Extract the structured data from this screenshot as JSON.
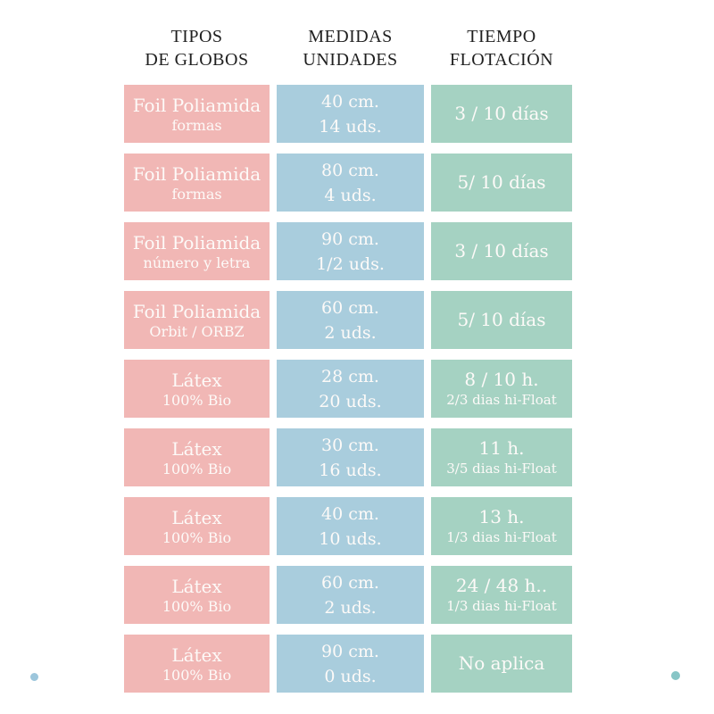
{
  "chart_data": {
    "type": "table",
    "columns": [
      {
        "line1": "TIPOS",
        "line2": "DE GLOBOS"
      },
      {
        "line1": "MEDIDAS",
        "line2": "UNIDADES"
      },
      {
        "line1": "TIEMPO",
        "line2": "FLOTACIÓN"
      }
    ],
    "rows": [
      {
        "tipo": "Foil Poliamida",
        "tipo_sub": "formas",
        "medida": "40 cm.",
        "unidades": "14 uds.",
        "flotacion": "3 / 10 días",
        "flotacion_sub": ""
      },
      {
        "tipo": "Foil Poliamida",
        "tipo_sub": "formas",
        "medida": "80 cm.",
        "unidades": "4 uds.",
        "flotacion": "5/ 10 días",
        "flotacion_sub": ""
      },
      {
        "tipo": "Foil Poliamida",
        "tipo_sub": "número y letra",
        "medida": "90 cm.",
        "unidades": "1/2 uds.",
        "flotacion": "3 / 10 días",
        "flotacion_sub": ""
      },
      {
        "tipo": "Foil Poliamida",
        "tipo_sub": "Orbit / ORBZ",
        "medida": "60 cm.",
        "unidades": "2 uds.",
        "flotacion": "5/ 10 días",
        "flotacion_sub": ""
      },
      {
        "tipo": "Látex",
        "tipo_sub": "100% Bio",
        "medida": "28 cm.",
        "unidades": "20 uds.",
        "flotacion": "8 / 10 h.",
        "flotacion_sub": "2/3 dias hi-Float"
      },
      {
        "tipo": "Látex",
        "tipo_sub": "100% Bio",
        "medida": "30 cm.",
        "unidades": "16 uds.",
        "flotacion": "11 h.",
        "flotacion_sub": "3/5 dias hi-Float"
      },
      {
        "tipo": "Látex",
        "tipo_sub": "100% Bio",
        "medida": "40 cm.",
        "unidades": "10 uds.",
        "flotacion": "13 h.",
        "flotacion_sub": "1/3 dias hi-Float"
      },
      {
        "tipo": "Látex",
        "tipo_sub": "100% Bio",
        "medida": "60 cm.",
        "unidades": "2 uds.",
        "flotacion": "24 / 48 h..",
        "flotacion_sub": "1/3 dias hi-Float"
      },
      {
        "tipo": "Látex",
        "tipo_sub": "100% Bio",
        "medida": "90 cm.",
        "unidades": "0 uds.",
        "flotacion": "No aplica",
        "flotacion_sub": ""
      }
    ]
  },
  "colors": {
    "tipo_cell": "#f1b7b5",
    "medida_cell": "#a9cddd",
    "flotacion_cell": "#a5d2c2",
    "header_text": "#1f1f1f",
    "cell_text": "#fdfaf8",
    "dot_left": "#9cc6dc",
    "dot_right": "#87c5c6"
  }
}
